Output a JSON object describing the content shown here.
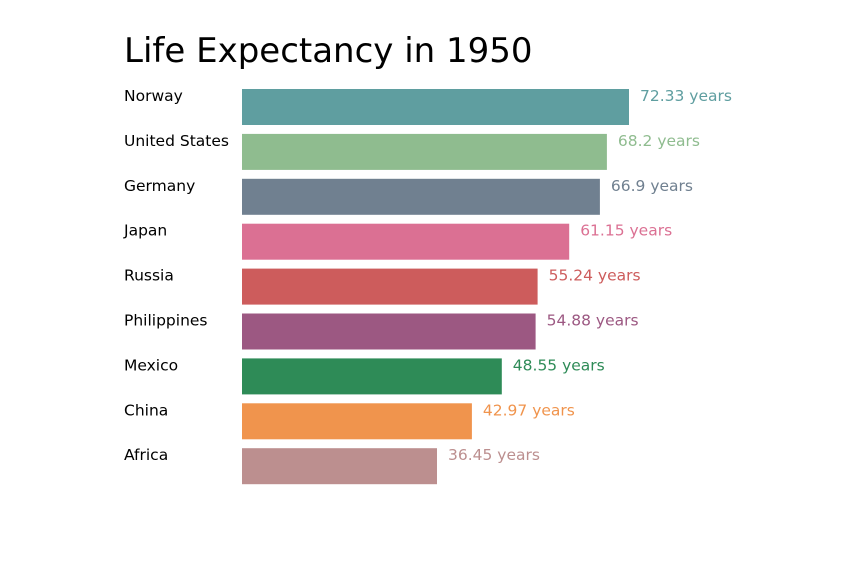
{
  "chart_data": {
    "type": "bar",
    "orientation": "horizontal",
    "title": "Life Expectancy in 1950",
    "xlabel": "",
    "ylabel": "",
    "value_suffix": " years",
    "grid": false,
    "categories": [
      "Norway",
      "United States",
      "Germany",
      "Japan",
      "Russia",
      "Philippines",
      "Mexico",
      "China",
      "Africa"
    ],
    "values": [
      72.33,
      68.2,
      66.9,
      61.15,
      55.24,
      54.88,
      48.55,
      42.97,
      36.45
    ],
    "value_labels": [
      "72.33 years",
      "68.2 years",
      "66.9 years",
      "61.15 years",
      "55.24 years",
      "54.88 years",
      "48.55 years",
      "42.97 years",
      "36.45 years"
    ],
    "colors": [
      "#5f9ea0",
      "#8fbc8f",
      "#708090",
      "#db7093",
      "#cd5c5c",
      "#9c5882",
      "#2e8b57",
      "#f0944d",
      "#bc8f8f"
    ],
    "xlim": [
      0,
      72.33
    ]
  }
}
